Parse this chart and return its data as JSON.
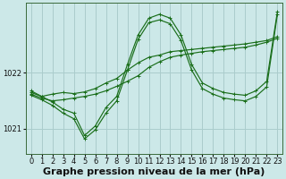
{
  "bg_color": "#cce8e8",
  "grid_color": "#aacccc",
  "line_color": "#1a6e1a",
  "xlabel": "Graphe pression niveau de la mer (hPa)",
  "xlabel_fontsize": 8,
  "xlim": [
    -0.5,
    23.5
  ],
  "ylim": [
    1020.55,
    1023.25
  ],
  "yticks": [
    1021,
    1022
  ],
  "xticks": [
    0,
    1,
    2,
    3,
    4,
    5,
    6,
    7,
    8,
    9,
    10,
    11,
    12,
    13,
    14,
    15,
    16,
    17,
    18,
    19,
    20,
    21,
    22,
    23
  ],
  "tick_fontsize": 6,
  "series": [
    [
      1021.65,
      1021.58,
      1021.62,
      1021.65,
      1021.63,
      1021.66,
      1021.72,
      1021.82,
      1021.9,
      1022.05,
      1022.18,
      1022.28,
      1022.32,
      1022.38,
      1022.4,
      1022.42,
      1022.44,
      1022.46,
      1022.48,
      1022.5,
      1022.52,
      1022.55,
      1022.58,
      1022.65
    ],
    [
      1021.62,
      1021.55,
      1021.5,
      1021.52,
      1021.55,
      1021.58,
      1021.62,
      1021.68,
      1021.76,
      1021.85,
      1021.95,
      1022.1,
      1022.2,
      1022.28,
      1022.32,
      1022.35,
      1022.38,
      1022.4,
      1022.42,
      1022.44,
      1022.46,
      1022.5,
      1022.55,
      1022.62
    ],
    [
      1021.68,
      1021.58,
      1021.48,
      1021.35,
      1021.28,
      1020.88,
      1021.05,
      1021.38,
      1021.58,
      1022.15,
      1022.68,
      1022.98,
      1023.05,
      1022.98,
      1022.68,
      1022.15,
      1021.82,
      1021.72,
      1021.65,
      1021.62,
      1021.6,
      1021.68,
      1021.85,
      1023.1
    ],
    [
      1021.6,
      1021.52,
      1021.42,
      1021.28,
      1021.18,
      1020.82,
      1020.98,
      1021.28,
      1021.5,
      1022.05,
      1022.6,
      1022.9,
      1022.95,
      1022.88,
      1022.58,
      1022.05,
      1021.72,
      1021.62,
      1021.55,
      1021.52,
      1021.5,
      1021.58,
      1021.75,
      1023.05
    ]
  ]
}
